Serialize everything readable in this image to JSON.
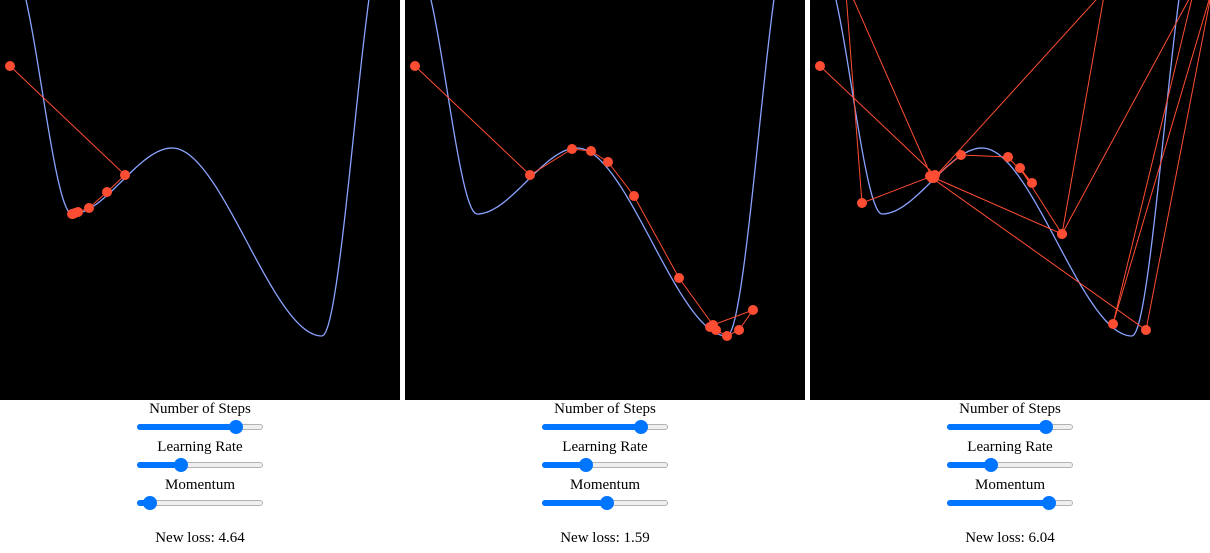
{
  "labels": {
    "steps": "Number of Steps",
    "learning_rate": "Learning Rate",
    "momentum": "Momentum",
    "loss_prefix": "New loss: "
  },
  "colors": {
    "curve": "#8aa3ff",
    "path": "#ff4d33",
    "plot_bg": "#000000",
    "slider_accent": "#0075ff"
  },
  "panels": [
    {
      "loss_text": "New loss: 4.64",
      "steps": 0.82,
      "learning_rate": 0.33,
      "momentum": 0.05,
      "path": [
        [
          10,
          66
        ],
        [
          125,
          175
        ],
        [
          107,
          192
        ],
        [
          89,
          208
        ],
        [
          78,
          212
        ],
        [
          75,
          213
        ],
        [
          73,
          214
        ],
        [
          72,
          214
        ]
      ]
    },
    {
      "loss_text": "New loss: 1.59",
      "steps": 0.82,
      "learning_rate": 0.33,
      "momentum": 0.52,
      "path": [
        [
          10,
          66
        ],
        [
          125,
          175
        ],
        [
          167,
          149
        ],
        [
          186,
          151
        ],
        [
          203,
          162
        ],
        [
          229,
          196
        ],
        [
          274,
          278
        ],
        [
          308,
          325
        ],
        [
          348,
          310
        ],
        [
          334,
          330
        ],
        [
          322,
          336
        ],
        [
          311,
          330
        ],
        [
          305,
          327
        ]
      ]
    },
    {
      "loss_text": "New loss: 6.04",
      "steps": 0.82,
      "learning_rate": 0.33,
      "momentum": 0.85,
      "path": [
        [
          10,
          66
        ],
        [
          125,
          175
        ],
        [
          52,
          203
        ],
        [
          35,
          -20
        ],
        [
          122,
          178
        ],
        [
          336,
          330
        ],
        [
          402,
          -10
        ],
        [
          303,
          324
        ],
        [
          384,
          -10
        ],
        [
          252,
          234
        ],
        [
          210,
          168
        ],
        [
          222,
          183
        ],
        [
          198,
          157
        ],
        [
          151,
          155
        ],
        [
          124,
          178
        ],
        [
          295,
          -10
        ],
        [
          252,
          234
        ],
        [
          120,
          176
        ]
      ]
    }
  ]
}
